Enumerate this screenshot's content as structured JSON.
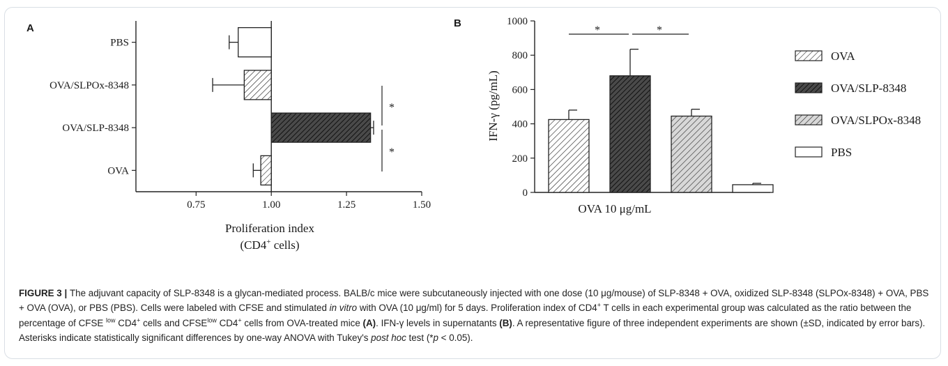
{
  "panel_a": {
    "letter": "A",
    "xlabel_line1": "Proliferation index",
    "xlabel_line2_pre": "(CD4",
    "xlabel_line2_sup": "+",
    "xlabel_line2_post": " cells)",
    "significance": [
      "*",
      "*"
    ]
  },
  "panel_b": {
    "letter": "B",
    "ylabel": "IFN-γ (pg/mL)",
    "xlabel": "OVA 10 μg/mL",
    "significance": [
      "*",
      "*"
    ]
  },
  "chart_data": [
    {
      "type": "bar",
      "orientation": "horizontal",
      "categories": [
        "PBS",
        "OVA/SLPOx-8348",
        "OVA/SLP-8348",
        "OVA"
      ],
      "values": [
        0.89,
        0.91,
        1.33,
        0.965
      ],
      "errors": [
        0.03,
        0.105,
        0.01,
        0.025
      ],
      "baseline": 1.0,
      "fills": [
        "white",
        "light-hatch",
        "dark-hatch",
        "light-hatch"
      ],
      "xlabel": "Proliferation index (CD4+ cells)",
      "xlim": [
        0.55,
        1.5
      ],
      "xticks": [
        0.75,
        1.0,
        1.25,
        1.5
      ],
      "xtick_labels": [
        "0.75",
        "1.00",
        "1.25",
        "1.50"
      ],
      "grid": false
    },
    {
      "type": "bar",
      "categories": [
        "OVA",
        "OVA/SLP-8348",
        "OVA/SLPOx-8348",
        "PBS"
      ],
      "values": [
        425,
        680,
        445,
        45
      ],
      "errors": [
        55,
        155,
        40,
        8
      ],
      "fills": [
        "light-hatch",
        "dark-hatch",
        "light-hatch",
        "white"
      ],
      "xlabel": "OVA 10 μg/mL",
      "ylabel": "IFN-γ (pg/mL)",
      "ylim": [
        0,
        1000
      ],
      "yticks": [
        0,
        200,
        400,
        600,
        800,
        1000
      ],
      "legend": [
        "OVA",
        "OVA/SLP-8348",
        "OVA/SLPOx-8348",
        "PBS"
      ],
      "legend_position": "right",
      "grid": false
    }
  ],
  "caption": {
    "title": "FIGURE 3 | ",
    "s1": "The adjuvant capacity of SLP-8348 is a glycan-mediated process. BALB/c mice were subcutaneously injected with one dose (10 μg/mouse) of SLP-8348 + OVA, oxidized SLP-8348 (SLPOx-8348) + OVA, PBS + OVA (OVA), or PBS (PBS). Cells were labeled with CFSE and stimulated ",
    "s1_italic": "in vitro",
    "s2": " with OVA (10 μg/ml) for 5 days. Proliferation index of CD4",
    "s2_sup": "+",
    "s3": " T cells in each experimental group was calculated as the ratio between the percentage of CFSE ",
    "s3_sup": "low",
    "s4": " CD4",
    "s4_sup": "+",
    "s5": " cells and CFSE",
    "s5_sup": "low",
    "s6": " CD4",
    "s6_sup": "+",
    "s7": " cells from OVA-treated mice ",
    "ref_a": "(A)",
    "s8": ". IFN-γ levels in supernatants ",
    "ref_b": "(B)",
    "s9": ". A representative figure of three independent experiments are shown (±SD, indicated by error bars). Asterisks indicate statistically significant differences by one-way ANOVA with Tukey's ",
    "s9_italic": "post hoc",
    "s10": " test (*",
    "s10_italic": "p",
    "s11": " < 0.05)."
  }
}
